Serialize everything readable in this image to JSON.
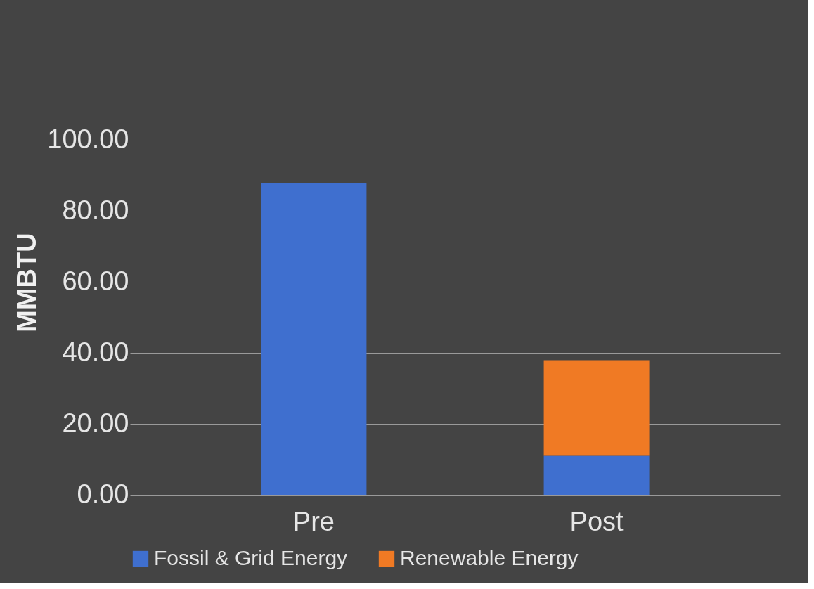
{
  "chart_data": {
    "type": "bar",
    "stacked": true,
    "ylabel": "MMBTU",
    "categories": [
      "Pre",
      "Post"
    ],
    "series": [
      {
        "name": "Fossil & Grid Energy",
        "color": "#3f6fcf",
        "values": [
          88,
          11
        ]
      },
      {
        "name": "Renewable Energy",
        "color": "#f07a24",
        "values": [
          null,
          27
        ]
      }
    ],
    "ylim": [
      0,
      120
    ],
    "yticks": [
      {
        "value": 0,
        "label": "0.00"
      },
      {
        "value": 20,
        "label": "20.00"
      },
      {
        "value": 40,
        "label": "40.00"
      },
      {
        "value": 60,
        "label": "60.00"
      },
      {
        "value": 80,
        "label": "80.00"
      },
      {
        "value": 100,
        "label": "100.00"
      },
      {
        "value": 120,
        "label": null
      }
    ],
    "grid": "y",
    "legend": "bottom"
  }
}
